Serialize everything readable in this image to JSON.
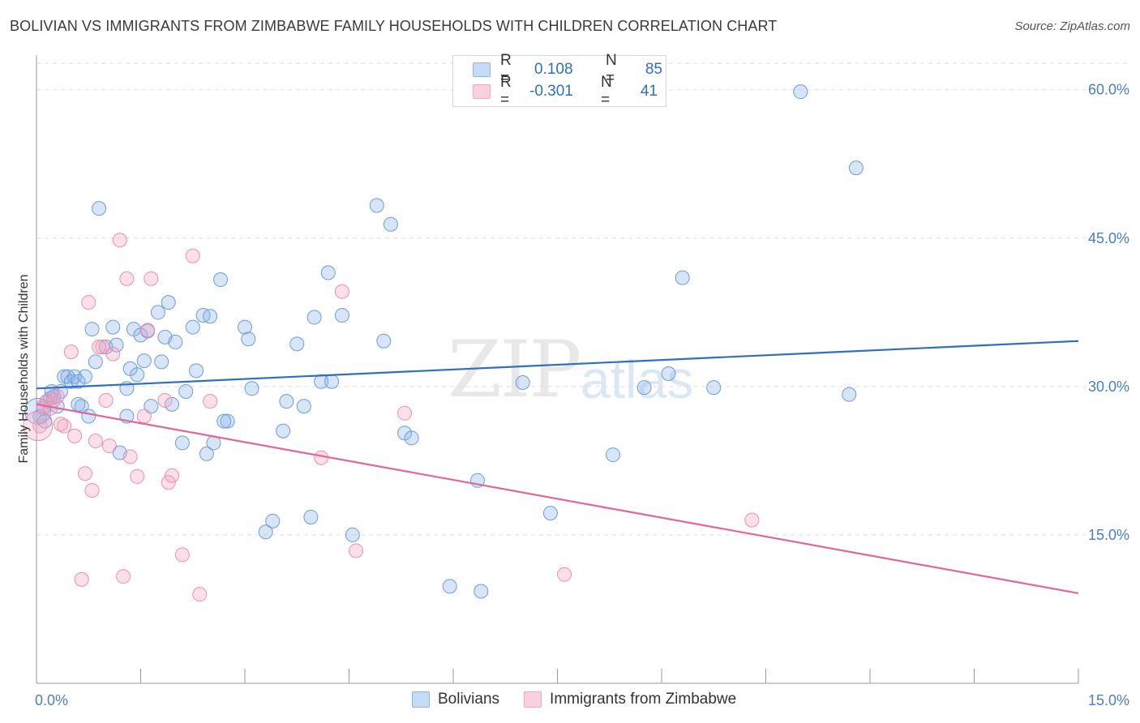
{
  "header": {
    "title": "BOLIVIAN VS IMMIGRANTS FROM ZIMBABWE FAMILY HOUSEHOLDS WITH CHILDREN CORRELATION CHART",
    "source": "Source: ZipAtlas.com"
  },
  "watermark": {
    "part1": "ZIP",
    "part2": "atlas"
  },
  "legend": {
    "rows": [
      {
        "r_label": "R =",
        "r_value": "0.108",
        "n_label": "N =",
        "n_value": "85"
      },
      {
        "r_label": "R =",
        "r_value": "-0.301",
        "n_label": "N =",
        "n_value": "41"
      }
    ]
  },
  "bottom_legend": {
    "items": [
      "Bolivians",
      "Immigrants from Zimbabwe"
    ]
  },
  "chart_data": {
    "type": "scatter",
    "ylabel": "Family Households with Children",
    "xlim": [
      0,
      15
    ],
    "ylim": [
      0,
      63.5
    ],
    "y_ticks": [
      15,
      30,
      45,
      60
    ],
    "y_tick_labels": [
      "15.0%",
      "30.0%",
      "45.0%",
      "60.0%"
    ],
    "x_tick_labels": [
      "0.0%",
      "15.0%"
    ],
    "grid": true,
    "colors": {
      "Bolivians": "#8db4e8",
      "Immigrants from Zimbabwe": "#f4a7c0",
      "blue_line": "#2f6fc1",
      "pink_line": "#e0679a"
    },
    "series": [
      {
        "name": "Bolivians",
        "trend": {
          "x": [
            0,
            15
          ],
          "y": [
            29.8,
            34.6
          ]
        },
        "points": [
          [
            0.05,
            27.0
          ],
          [
            0.12,
            26.5
          ],
          [
            0.15,
            28.5
          ],
          [
            0.2,
            28.8
          ],
          [
            0.25,
            29.0
          ],
          [
            0.3,
            28.0
          ],
          [
            0.35,
            29.5
          ],
          [
            0.4,
            31.0
          ],
          [
            0.45,
            31.0
          ],
          [
            0.5,
            30.5
          ],
          [
            0.55,
            31.0
          ],
          [
            0.6,
            30.5
          ],
          [
            0.65,
            28.0
          ],
          [
            0.7,
            31.0
          ],
          [
            0.75,
            27.0
          ],
          [
            0.8,
            35.8
          ],
          [
            0.85,
            32.5
          ],
          [
            0.9,
            48.0
          ],
          [
            1.0,
            34.0
          ],
          [
            1.1,
            36.0
          ],
          [
            1.15,
            34.2
          ],
          [
            1.2,
            23.3
          ],
          [
            1.3,
            29.8
          ],
          [
            1.35,
            31.8
          ],
          [
            1.4,
            35.8
          ],
          [
            1.45,
            31.2
          ],
          [
            1.5,
            35.2
          ],
          [
            1.55,
            32.6
          ],
          [
            1.6,
            35.6
          ],
          [
            1.65,
            28.0
          ],
          [
            1.75,
            37.5
          ],
          [
            1.8,
            32.5
          ],
          [
            1.85,
            35.0
          ],
          [
            1.9,
            38.5
          ],
          [
            1.95,
            28.2
          ],
          [
            2.0,
            34.5
          ],
          [
            2.1,
            24.3
          ],
          [
            2.15,
            29.5
          ],
          [
            2.25,
            36.0
          ],
          [
            2.3,
            31.6
          ],
          [
            2.4,
            37.2
          ],
          [
            2.45,
            23.2
          ],
          [
            2.5,
            37.1
          ],
          [
            2.55,
            24.3
          ],
          [
            2.65,
            40.8
          ],
          [
            2.75,
            26.5
          ],
          [
            3.0,
            36.0
          ],
          [
            3.05,
            34.8
          ],
          [
            3.1,
            29.8
          ],
          [
            3.3,
            15.3
          ],
          [
            3.4,
            16.4
          ],
          [
            3.55,
            25.5
          ],
          [
            3.6,
            28.5
          ],
          [
            3.75,
            34.3
          ],
          [
            3.85,
            28.0
          ],
          [
            3.95,
            16.8
          ],
          [
            4.0,
            37.0
          ],
          [
            4.1,
            30.5
          ],
          [
            4.2,
            41.5
          ],
          [
            4.25,
            30.5
          ],
          [
            4.4,
            37.2
          ],
          [
            4.55,
            15.0
          ],
          [
            5.0,
            34.6
          ],
          [
            5.1,
            46.4
          ],
          [
            5.3,
            25.3
          ],
          [
            5.4,
            24.8
          ],
          [
            5.95,
            9.8
          ],
          [
            6.35,
            20.5
          ],
          [
            6.4,
            9.3
          ],
          [
            7.0,
            30.4
          ],
          [
            7.4,
            17.2
          ],
          [
            8.3,
            23.1
          ],
          [
            8.75,
            29.9
          ],
          [
            9.1,
            31.3
          ],
          [
            9.3,
            41.0
          ],
          [
            9.75,
            29.9
          ],
          [
            11.0,
            59.8
          ],
          [
            11.7,
            29.2
          ],
          [
            11.8,
            52.1
          ],
          [
            4.9,
            48.3
          ],
          [
            0.1,
            27.8
          ],
          [
            0.22,
            29.5
          ],
          [
            2.7,
            26.5
          ],
          [
            1.3,
            27.0
          ],
          [
            0.6,
            28.2
          ]
        ]
      },
      {
        "name": "Immigrants from Zimbabwe",
        "trend": {
          "x": [
            0,
            15
          ],
          "y": [
            28.2,
            9.1
          ]
        },
        "points": [
          [
            0.05,
            26.0
          ],
          [
            0.1,
            28.0
          ],
          [
            0.15,
            28.5
          ],
          [
            0.2,
            27.8
          ],
          [
            0.25,
            28.6
          ],
          [
            0.3,
            29.0
          ],
          [
            0.4,
            26.0
          ],
          [
            0.5,
            33.5
          ],
          [
            0.55,
            25.0
          ],
          [
            0.65,
            10.5
          ],
          [
            0.7,
            21.2
          ],
          [
            0.75,
            38.5
          ],
          [
            0.8,
            19.5
          ],
          [
            0.85,
            24.5
          ],
          [
            0.95,
            34.0
          ],
          [
            1.0,
            28.6
          ],
          [
            1.05,
            24.0
          ],
          [
            1.1,
            33.3
          ],
          [
            1.2,
            44.8
          ],
          [
            1.25,
            10.8
          ],
          [
            1.3,
            40.9
          ],
          [
            1.35,
            22.9
          ],
          [
            1.45,
            20.9
          ],
          [
            1.55,
            27.0
          ],
          [
            1.6,
            35.7
          ],
          [
            1.65,
            40.9
          ],
          [
            1.9,
            20.3
          ],
          [
            1.95,
            21.0
          ],
          [
            2.1,
            13.0
          ],
          [
            2.25,
            43.2
          ],
          [
            2.35,
            9.0
          ],
          [
            2.5,
            28.5
          ],
          [
            4.1,
            22.8
          ],
          [
            4.4,
            39.6
          ],
          [
            4.6,
            13.4
          ],
          [
            5.3,
            27.3
          ],
          [
            7.6,
            11.0
          ],
          [
            10.3,
            16.5
          ],
          [
            0.9,
            34.0
          ],
          [
            0.35,
            26.2
          ],
          [
            1.85,
            28.6
          ]
        ]
      }
    ]
  }
}
